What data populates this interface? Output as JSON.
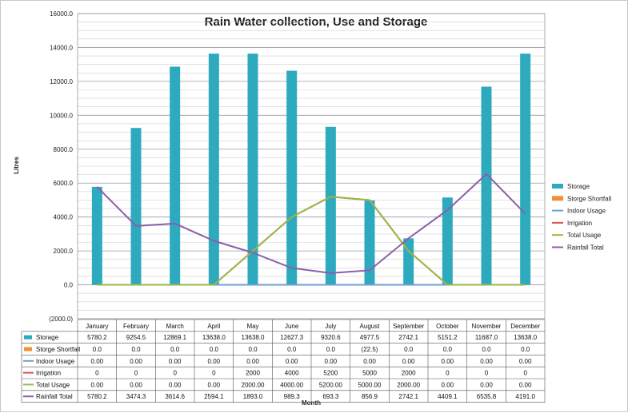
{
  "chart_data": {
    "type": "bar",
    "title": "Rain Water collection, Use and Storage",
    "xlabel": "Month",
    "ylabel": "Litres",
    "ylim": [
      -2000,
      16000
    ],
    "ytick_step": 2000,
    "y_tick_labels": [
      "(2000.0)",
      "0.0",
      "2000.0",
      "4000.0",
      "6000.0",
      "8000.0",
      "10000.0",
      "12000.0",
      "14000.0",
      "16000.0"
    ],
    "grid": true,
    "legend_position": "right",
    "categories": [
      "January",
      "February",
      "March",
      "April",
      "May",
      "June",
      "July",
      "August",
      "September",
      "October",
      "November",
      "December"
    ],
    "series": [
      {
        "name": "Storage",
        "kind": "bar",
        "color": "#2eaabf",
        "values": [
          5780.2,
          9254.5,
          12869.1,
          13638.0,
          13638.0,
          12627.3,
          9320.6,
          4977.5,
          2742.1,
          5151.2,
          11687.0,
          13638.0
        ],
        "labels": [
          "5780.2",
          "9254.5",
          "12869.1",
          "13638.0",
          "13638.0",
          "12627.3",
          "9320.6",
          "4977.5",
          "2742.1",
          "5151.2",
          "11687.0",
          "13638.0"
        ]
      },
      {
        "name": "Storge Shortfall",
        "kind": "bar",
        "color": "#f0913a",
        "values": [
          0,
          0,
          0,
          0,
          0,
          0,
          0,
          -22.5,
          0,
          0,
          0,
          0
        ],
        "labels": [
          "0.0",
          "0.0",
          "0.0",
          "0.0",
          "0.0",
          "0.0",
          "0.0",
          "(22.5)",
          "0.0",
          "0.0",
          "0.0",
          "0.0"
        ]
      },
      {
        "name": "Indoor Usage",
        "kind": "line",
        "color": "#6f9fd8",
        "values": [
          0,
          0,
          0,
          0,
          0,
          0,
          0,
          0,
          0,
          0,
          0,
          0
        ],
        "labels": [
          "0.00",
          "0.00",
          "0.00",
          "0.00",
          "0.00",
          "0.00",
          "0.00",
          "0.00",
          "0.00",
          "0.00",
          "0.00",
          "0.00"
        ]
      },
      {
        "name": "Irrigation",
        "kind": "line",
        "color": "#d9534f",
        "values": [
          0,
          0,
          0,
          0,
          2000,
          4000,
          5200,
          5000,
          2000,
          0,
          0,
          0
        ],
        "labels": [
          "0",
          "0",
          "0",
          "0",
          "2000",
          "4000",
          "5200",
          "5000",
          "2000",
          "0",
          "0",
          "0"
        ]
      },
      {
        "name": "Total Usage",
        "kind": "line",
        "color": "#9ab84a",
        "values": [
          0,
          0,
          0,
          0,
          2000,
          4000,
          5200,
          5000,
          2000,
          0,
          0,
          0
        ],
        "labels": [
          "0.00",
          "0.00",
          "0.00",
          "0.00",
          "2000.00",
          "4000.00",
          "5200.00",
          "5000.00",
          "2000.00",
          "0.00",
          "0.00",
          "0.00"
        ]
      },
      {
        "name": "Rainfall Total",
        "kind": "line",
        "color": "#8c5ea8",
        "values": [
          5780.2,
          3474.3,
          3614.6,
          2594.1,
          1893.0,
          989.3,
          693.3,
          856.9,
          2742.1,
          4409.1,
          6535.8,
          4191.0
        ],
        "labels": [
          "5780.2",
          "3474.3",
          "3614.6",
          "2594.1",
          "1893.0",
          "989.3",
          "693.3",
          "856.9",
          "2742.1",
          "4409.1",
          "6535.8",
          "4191.0"
        ]
      }
    ]
  }
}
